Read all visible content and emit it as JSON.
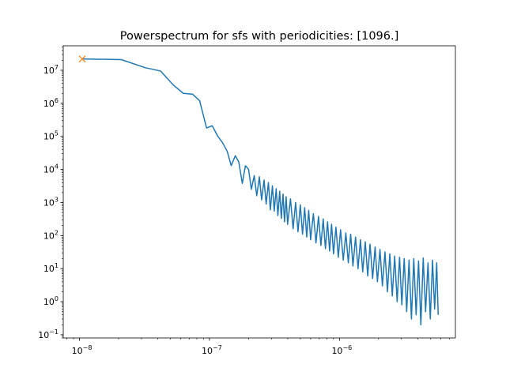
{
  "chart_data": {
    "type": "line",
    "title": "Powerspectrum for sfs with periodicities: [1096.]",
    "xlabel": "",
    "ylabel": "",
    "xscale": "log",
    "yscale": "log",
    "xlim": [
      7.5e-09,
      7.8e-06
    ],
    "ylim": [
      0.08,
      55000000.0
    ],
    "grid": false,
    "x_tick_labels": [
      "10^-8",
      "10^-7",
      "10^-6"
    ],
    "y_tick_labels": [
      "10^-1",
      "10^0",
      "10^1",
      "10^2",
      "10^3",
      "10^4",
      "10^5",
      "10^6",
      "10^7"
    ],
    "series": [
      {
        "color": "#1f77b4",
        "style": "line",
        "x": [
          1.05e-08,
          2.1e-08,
          3.2e-08,
          4.2e-08,
          5.3e-08,
          6.3e-08,
          7.4e-08,
          8.4e-08,
          9.5e-08,
          1.05e-07,
          1.16e-07,
          1.26e-07,
          1.37e-07,
          1.47e-07,
          1.58e-07,
          1.68e-07,
          1.79e-07,
          1.89e-07,
          2e-07,
          2.1e-07,
          2.21e-07,
          2.31e-07,
          2.42e-07,
          2.52e-07,
          2.63e-07,
          2.73e-07,
          2.84e-07,
          2.94e-07,
          3.05e-07,
          3.15e-07,
          3.26e-07,
          3.36e-07,
          3.47e-07,
          3.57e-07,
          3.68e-07,
          3.78e-07,
          3.89e-07,
          3.99e-07,
          4.2e-07,
          4.4e-07,
          4.6e-07,
          4.8e-07,
          5e-07,
          5.2e-07,
          5.4e-07,
          5.6e-07,
          5.8e-07,
          6e-07,
          6.3e-07,
          6.6e-07,
          6.9e-07,
          7.2e-07,
          7.5e-07,
          7.8e-07,
          8.1e-07,
          8.4e-07,
          8.7e-07,
          9e-07,
          9.4e-07,
          9.8e-07,
          1.02e-06,
          1.07e-06,
          1.12e-06,
          1.17e-06,
          1.22e-06,
          1.27e-06,
          1.33e-06,
          1.39e-06,
          1.45e-06,
          1.51e-06,
          1.58e-06,
          1.65e-06,
          1.72e-06,
          1.8e-06,
          1.88e-06,
          1.96e-06,
          2.05e-06,
          2.14e-06,
          2.24e-06,
          2.34e-06,
          2.44e-06,
          2.55e-06,
          2.66e-06,
          2.78e-06,
          2.9e-06,
          3.02e-06,
          3.15e-06,
          3.29e-06,
          3.43e-06,
          3.58e-06,
          3.73e-06,
          3.89e-06,
          4.06e-06,
          4.23e-06,
          4.41e-06,
          4.6e-06,
          4.8e-06,
          5e-06,
          5.2e-06,
          5.4e-06,
          5.6e-06,
          5.75e-06
        ],
        "y": [
          22000000.0,
          21000000.0,
          12000000.0,
          9500000.0,
          3500000.0,
          2000000.0,
          1900000.0,
          1200000.0,
          180000.0,
          210000.0,
          100000.0,
          65000.0,
          35000.0,
          13000.0,
          26000.0,
          17000.0,
          3800.0,
          13000.0,
          10000.0,
          2500.0,
          6500.0,
          1600.0,
          6000.0,
          1200.0,
          4800.0,
          900.0,
          4000.0,
          600.0,
          3200.0,
          550.0,
          2600.0,
          400.0,
          2200.0,
          330.0,
          1800.0,
          260.0,
          1500.0,
          220.0,
          1300.0,
          160.0,
          1000.0,
          130.0,
          850.0,
          110.0,
          700.0,
          90.0,
          580.0,
          75.0,
          460.0,
          60.0,
          380.0,
          50.0,
          320.0,
          40.0,
          260.0,
          34.0,
          220.0,
          28.0,
          180.0,
          22.0,
          150.0,
          18.0,
          120.0,
          15.0,
          110.0,
          12.0,
          90.0,
          10.0,
          75.0,
          8.0,
          65.0,
          6.0,
          55.0,
          5.0,
          45.0,
          4.0,
          38.0,
          3.0,
          32.0,
          2.0,
          28.0,
          1.5,
          24.0,
          1.0,
          22.0,
          0.8,
          20.0,
          0.5,
          18.0,
          0.3,
          20.0,
          0.4,
          17.0,
          0.2,
          21.0,
          0.5,
          15.0,
          0.3,
          18.0,
          0.6,
          15.0,
          0.4
        ]
      },
      {
        "color": "#ff7f0e",
        "style": "marker-x",
        "x": [
          1.05e-08
        ],
        "y": [
          22000000.0
        ]
      }
    ]
  }
}
